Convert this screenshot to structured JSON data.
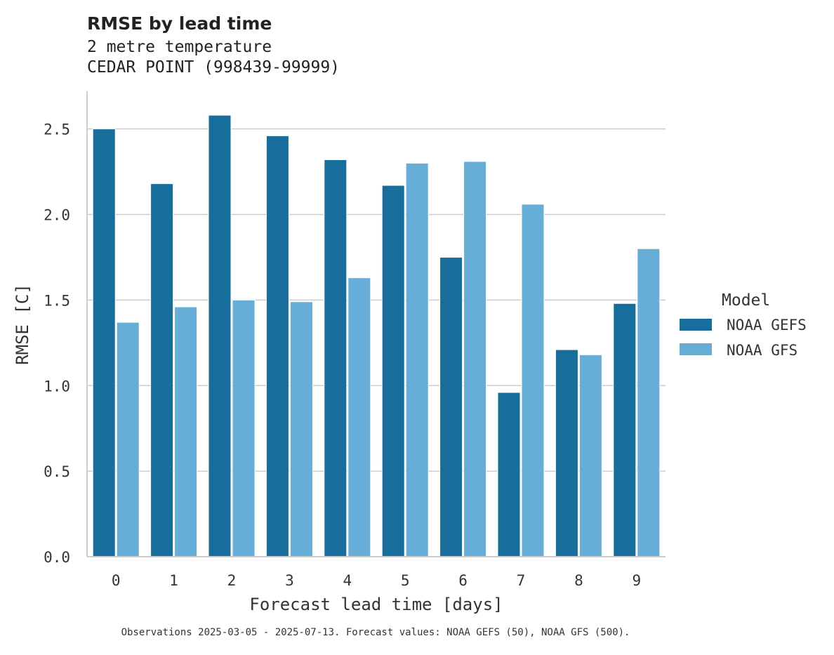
{
  "chart_data": {
    "type": "bar",
    "title": "RMSE by lead time",
    "subtitle_lines": [
      "2 metre temperature",
      "CEDAR POINT (998439-99999)"
    ],
    "xlabel": "Forecast lead time [days]",
    "ylabel": "RMSE [C]",
    "categories": [
      "0",
      "1",
      "2",
      "3",
      "4",
      "5",
      "6",
      "7",
      "8",
      "9"
    ],
    "ylim": [
      0,
      2.72
    ],
    "yticks": [
      "0.0",
      "0.5",
      "1.0",
      "1.5",
      "2.0",
      "2.5"
    ],
    "grid": "horizontal",
    "legend": {
      "title": "Model",
      "placement": "right"
    },
    "series": [
      {
        "name": "NOAA GEFS",
        "color": "#176e9c",
        "values": [
          2.5,
          2.18,
          2.58,
          2.46,
          2.32,
          2.17,
          1.75,
          0.96,
          1.21,
          1.48
        ]
      },
      {
        "name": "NOAA GFS",
        "color": "#66aed7",
        "values": [
          1.37,
          1.46,
          1.5,
          1.49,
          1.63,
          2.3,
          2.31,
          2.06,
          1.18,
          1.8
        ]
      }
    ],
    "footnote": "Observations 2025-03-05 - 2025-07-13. Forecast values: NOAA GEFS (50), NOAA GFS (500)."
  }
}
